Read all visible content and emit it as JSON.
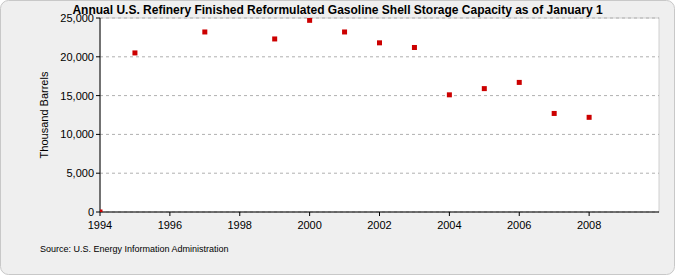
{
  "chart_data": {
    "type": "scatter",
    "title": "Annual U.S. Refinery Finished Reformulated Gasoline Shell Storage Capacity as of January 1",
    "y_label": "Thousand Barrels",
    "source": "Source: U.S. Energy Information Administration",
    "x": [
      1994,
      1995,
      1997,
      1999,
      2000,
      2001,
      2002,
      2003,
      2004,
      2005,
      2006,
      2007,
      2008
    ],
    "values": [
      0,
      20500,
      23200,
      22300,
      24700,
      23200,
      21800,
      21200,
      15100,
      15900,
      16700,
      12700,
      12200
    ],
    "color": "#cc0000",
    "marker": "square",
    "xlim": [
      1994,
      2010
    ],
    "xticks": [
      1994,
      1996,
      1998,
      2000,
      2002,
      2004,
      2006,
      2008
    ],
    "ylim": [
      0,
      25000
    ],
    "yticks": [
      0,
      {
        "value": 5000,
        "label": "5,000"
      },
      {
        "value": 10000,
        "label": "10,000"
      },
      {
        "value": 15000,
        "label": "15,000"
      },
      {
        "value": 20000,
        "label": "20,000"
      },
      {
        "value": 25000,
        "label": "25,000"
      }
    ],
    "grid": true
  }
}
